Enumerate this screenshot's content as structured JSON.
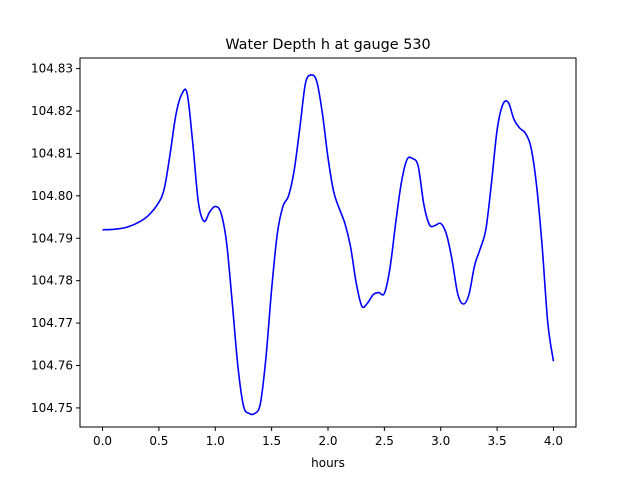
{
  "chart_data": {
    "type": "line",
    "title": "Water Depth h at gauge 530",
    "xlabel": "hours",
    "ylabel": "",
    "xlim": [
      -0.2,
      4.2
    ],
    "ylim": [
      104.7455,
      104.8325
    ],
    "xticks": [
      0.0,
      0.5,
      1.0,
      1.5,
      2.0,
      2.5,
      3.0,
      3.5,
      4.0
    ],
    "xtick_labels": [
      "0.0",
      "0.5",
      "1.0",
      "1.5",
      "2.0",
      "2.5",
      "3.0",
      "3.5",
      "4.0"
    ],
    "yticks": [
      104.75,
      104.76,
      104.77,
      104.78,
      104.79,
      104.8,
      104.81,
      104.82,
      104.83
    ],
    "ytick_labels": [
      "104.75",
      "104.76",
      "104.77",
      "104.78",
      "104.79",
      "104.80",
      "104.81",
      "104.82",
      "104.83"
    ],
    "grid": false,
    "legend": "none",
    "series": [
      {
        "color": "#0000ff",
        "x": [
          0.0,
          0.1,
          0.2,
          0.3,
          0.4,
          0.5,
          0.55,
          0.6,
          0.65,
          0.7,
          0.75,
          0.8,
          0.85,
          0.9,
          0.95,
          1.0,
          1.05,
          1.1,
          1.15,
          1.2,
          1.25,
          1.3,
          1.35,
          1.4,
          1.45,
          1.5,
          1.55,
          1.6,
          1.65,
          1.7,
          1.75,
          1.8,
          1.85,
          1.9,
          1.95,
          2.0,
          2.05,
          2.1,
          2.15,
          2.2,
          2.25,
          2.3,
          2.35,
          2.4,
          2.45,
          2.5,
          2.55,
          2.6,
          2.65,
          2.7,
          2.75,
          2.8,
          2.85,
          2.9,
          2.95,
          3.0,
          3.05,
          3.1,
          3.15,
          3.2,
          3.25,
          3.3,
          3.35,
          3.4,
          3.45,
          3.5,
          3.55,
          3.6,
          3.65,
          3.7,
          3.75,
          3.8,
          3.85,
          3.9,
          3.95,
          4.0
        ],
        "values": [
          104.792,
          104.7921,
          104.7925,
          104.7935,
          104.7952,
          104.7985,
          104.802,
          104.81,
          104.819,
          104.8238,
          104.8242,
          104.8125,
          104.7985,
          104.794,
          104.7962,
          104.7975,
          104.796,
          104.789,
          104.775,
          104.76,
          104.7505,
          104.7487,
          104.7487,
          104.751,
          104.762,
          104.778,
          104.791,
          104.7975,
          104.8,
          104.806,
          104.816,
          104.8265,
          104.8285,
          104.827,
          104.8195,
          104.809,
          104.801,
          104.797,
          104.7935,
          104.788,
          104.7795,
          104.774,
          104.7747,
          104.7767,
          104.7772,
          104.777,
          104.783,
          104.7935,
          104.803,
          104.8085,
          104.8088,
          104.807,
          104.798,
          104.7932,
          104.793,
          104.7935,
          104.791,
          104.785,
          104.777,
          104.7745,
          104.7767,
          104.7835,
          104.7875,
          104.792,
          104.803,
          104.8155,
          104.8215,
          104.822,
          104.818,
          104.816,
          104.8148,
          104.8115,
          104.8025,
          104.788,
          104.77,
          104.761
        ]
      }
    ]
  }
}
